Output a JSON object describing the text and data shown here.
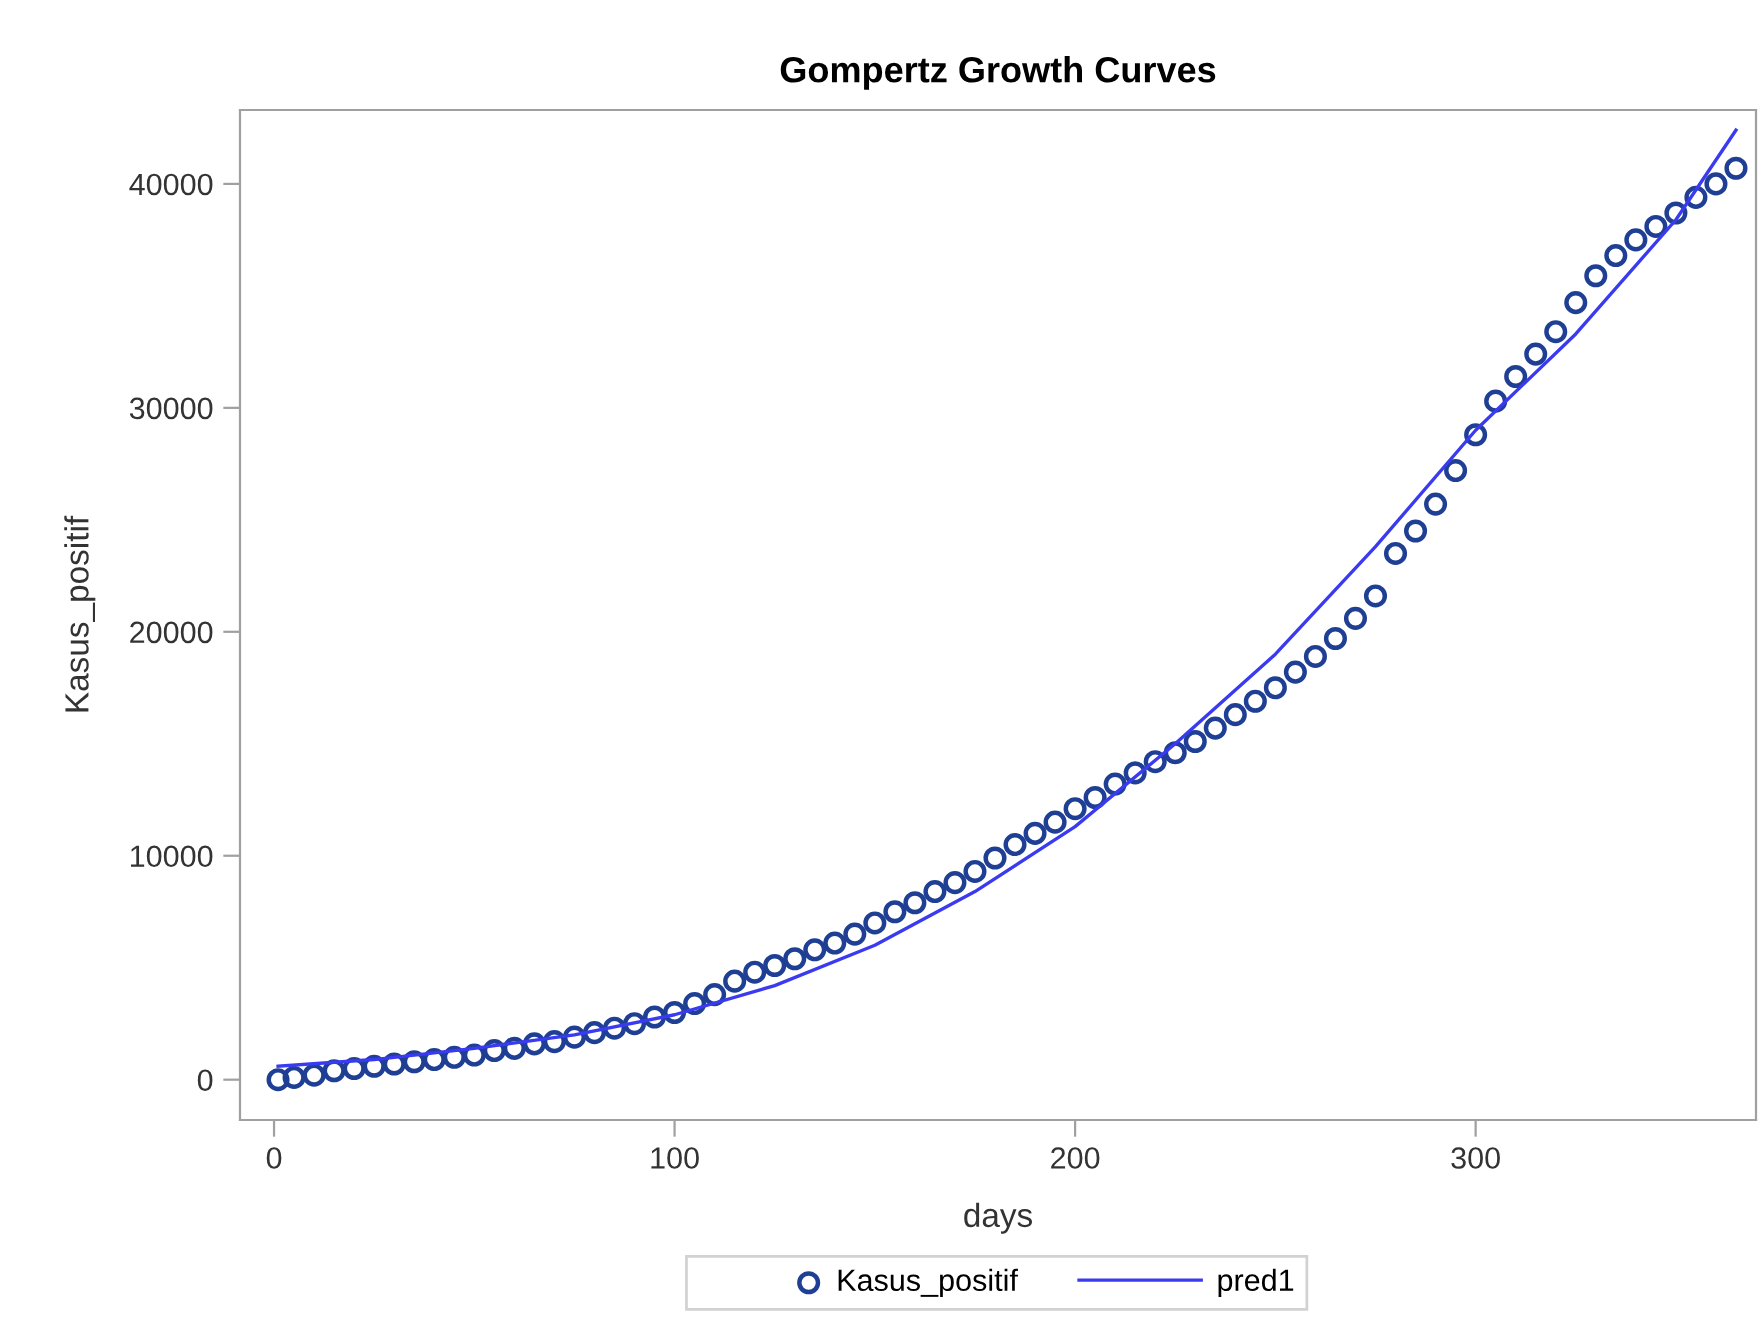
{
  "chart_data": {
    "type": "scatter",
    "title": "Gompertz Growth Curves",
    "xlabel": "days",
    "ylabel": "Kasus_positif",
    "xlim": [
      -8.5,
      370
    ],
    "xticks": [
      0,
      100,
      200,
      300
    ],
    "ylim": [
      -1800,
      43300
    ],
    "yticks": [
      0,
      10000,
      20000,
      30000,
      40000
    ],
    "grid": false,
    "legend": "bottom",
    "series": [
      {
        "name": "Kasus_positif",
        "marker": "circle",
        "color": "#1f3f94",
        "x": [
          1,
          5,
          10,
          15,
          20,
          25,
          30,
          35,
          40,
          45,
          50,
          55,
          60,
          65,
          70,
          75,
          80,
          85,
          90,
          95,
          100,
          105,
          110,
          115,
          120,
          125,
          130,
          135,
          140,
          145,
          150,
          155,
          160,
          165,
          170,
          175,
          180,
          185,
          190,
          195,
          200,
          205,
          210,
          215,
          220,
          225,
          230,
          235,
          240,
          245,
          250,
          255,
          260,
          265,
          270,
          275,
          280,
          285,
          290,
          295,
          300,
          305,
          310,
          315,
          320,
          325,
          330,
          335,
          340,
          345,
          350,
          355,
          360,
          365
        ],
        "values": [
          0,
          100,
          200,
          400,
          500,
          600,
          700,
          800,
          900,
          1000,
          1100,
          1300,
          1400,
          1600,
          1700,
          1900,
          2100,
          2300,
          2500,
          2800,
          3000,
          3400,
          3800,
          4400,
          4800,
          5100,
          5400,
          5800,
          6100,
          6500,
          7000,
          7500,
          7900,
          8400,
          8800,
          9300,
          9900,
          10500,
          11000,
          11500,
          12100,
          12600,
          13200,
          13700,
          14200,
          14600,
          15100,
          15700,
          16300,
          16900,
          17500,
          18200,
          18900,
          19700,
          20600,
          21600,
          23500,
          24500,
          25700,
          27200,
          28800,
          30300,
          31400,
          32400,
          33400,
          34700,
          35900,
          36800,
          37500,
          38100,
          38700,
          39400,
          40000,
          40700
        ]
      },
      {
        "name": "pred1",
        "type": "line",
        "marker": "none",
        "line_style": "solid",
        "color": "#3a3af0",
        "x": [
          1,
          25,
          50,
          75,
          100,
          125,
          150,
          175,
          200,
          225,
          250,
          275,
          300,
          325,
          350,
          365
        ],
        "values": [
          600,
          900,
          1400,
          2000,
          2900,
          4200,
          6000,
          8400,
          11300,
          15000,
          19000,
          23800,
          29000,
          33300,
          38400,
          42400
        ]
      }
    ]
  }
}
